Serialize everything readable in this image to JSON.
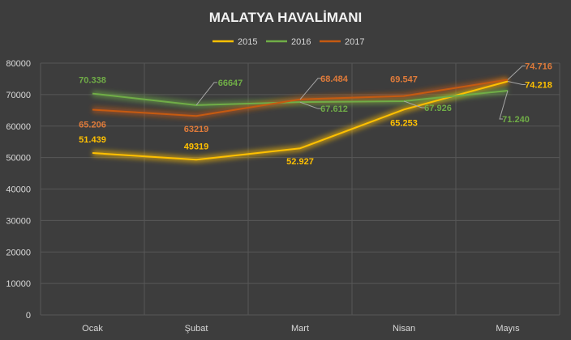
{
  "chart_data": {
    "type": "line",
    "title": "MALATYA HAVALİMANI",
    "categories": [
      "Ocak",
      "Şubat",
      "Mart",
      "Nisan",
      "Mayıs"
    ],
    "ylim": [
      0,
      80000
    ],
    "yticks": [
      0,
      10000,
      20000,
      30000,
      40000,
      50000,
      60000,
      70000,
      80000
    ],
    "grid": true,
    "legend_position": "top",
    "series": [
      {
        "name": "2015",
        "color": "#ffc000",
        "values": [
          51439,
          49319,
          52927,
          65253,
          74218
        ],
        "labels": [
          "51.439",
          "49319",
          "52.927",
          "65.253",
          "74.218"
        ]
      },
      {
        "name": "2016",
        "color": "#70ad47",
        "values": [
          70338,
          66647,
          67612,
          67926,
          71240
        ],
        "labels": [
          "70.338",
          "66647",
          "67.612",
          "67.926",
          "71.240"
        ]
      },
      {
        "name": "2017",
        "color": "#c55a11",
        "labelColor": "#e07b3a",
        "values": [
          65206,
          63219,
          68484,
          69547,
          74716
        ],
        "labels": [
          "65.206",
          "63219",
          "68.484",
          "69.547",
          "74.716"
        ]
      }
    ]
  }
}
